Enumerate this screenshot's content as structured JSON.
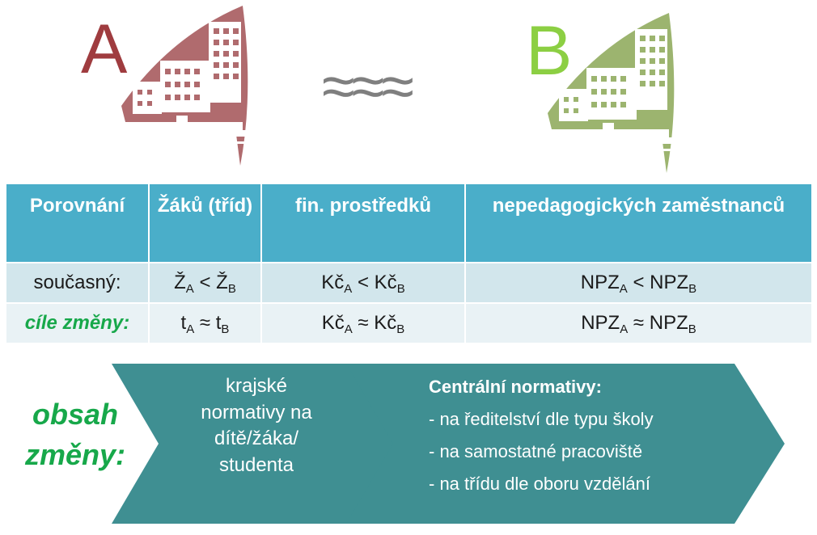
{
  "header": {
    "school_a_letter": "A",
    "school_b_letter": "B",
    "approx_symbol": "≈≈≈"
  },
  "colors": {
    "school_a": "#b06b6e",
    "school_b": "#9cb46f",
    "table_header": "#4aaec9",
    "arrow": "#3f8f92",
    "accent_green": "#17a84a"
  },
  "table": {
    "headers": [
      "Porovnání",
      "Žáků (tříd)",
      "fin. prostředků",
      "nepedagogických zaměstnanců"
    ],
    "rows": [
      {
        "label": "současný:",
        "c1": {
          "base": "Ž",
          "sub1": "A",
          "op": " < ",
          "base2": "Ž",
          "sub2": "B"
        },
        "c2": {
          "base": "Kč",
          "sub1": "A",
          "op": " < ",
          "base2": "Kč",
          "sub2": "B"
        },
        "c3": {
          "base": "NPZ",
          "sub1": "A",
          "op": " < ",
          "base2": "NPZ",
          "sub2": "B"
        }
      },
      {
        "label": "cíle změny:",
        "c1": {
          "base": "t",
          "sub1": "A",
          "op": " ≈ ",
          "base2": "t",
          "sub2": "B"
        },
        "c2": {
          "base": "Kč",
          "sub1": "A",
          "op": " ≈ ",
          "base2": "Kč",
          "sub2": "B"
        },
        "c3": {
          "base": "NPZ",
          "sub1": "A",
          "op": " ≈ ",
          "base2": "NPZ",
          "sub2": "B"
        }
      }
    ]
  },
  "flow": {
    "side_label": "obsah změny:",
    "arrow1_text": "krajské normativy na dítě/žáka/ studenta",
    "arrow2_title": "Centrální normativy:",
    "arrow2_items": [
      "- na ředitelství dle typu školy",
      "- na samostatné pracoviště",
      "- na třídu dle oboru vzdělání"
    ]
  }
}
